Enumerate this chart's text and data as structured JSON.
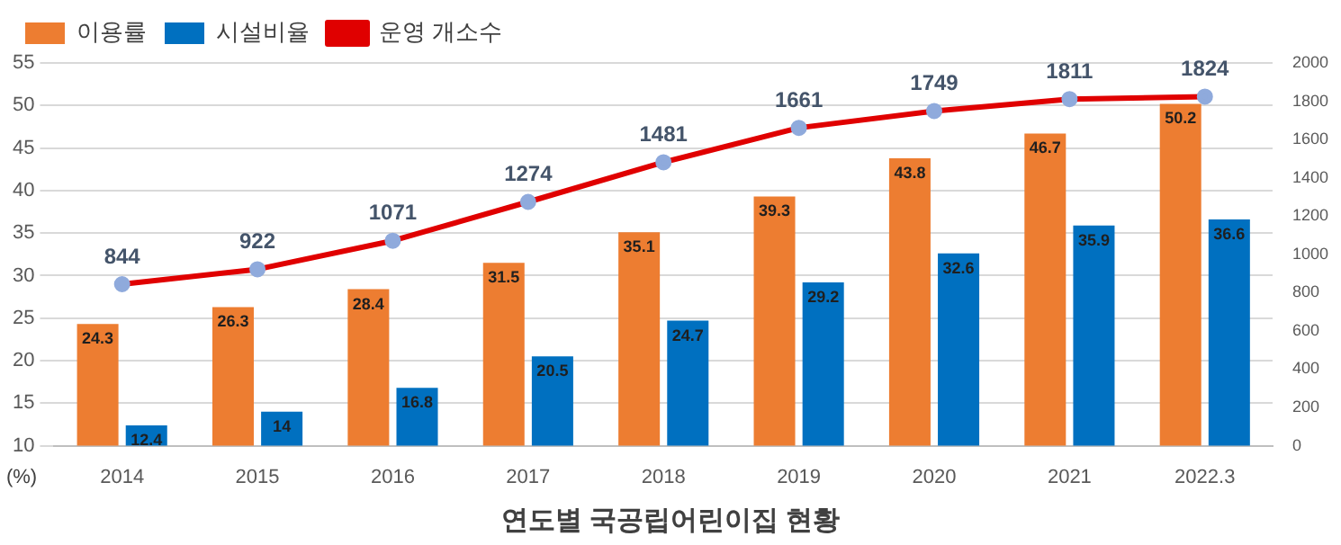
{
  "chart_data": {
    "type": "bar",
    "title": "연도별 국공립어린이집 현황",
    "ylabel": "(%)",
    "categories": [
      "2014",
      "2015",
      "2016",
      "2017",
      "2018",
      "2019",
      "2020",
      "2021",
      "2022.3"
    ],
    "series": [
      {
        "name": "이용률",
        "color": "#ed7d31",
        "values": [
          24.3,
          26.3,
          28.4,
          31.5,
          35.1,
          39.3,
          43.8,
          46.7,
          50.2
        ]
      },
      {
        "name": "시설비율",
        "color": "#0070c0",
        "values": [
          12.4,
          14,
          16.8,
          20.5,
          24.7,
          29.2,
          32.6,
          35.9,
          36.6
        ]
      },
      {
        "name": "운영 개소수",
        "type": "line",
        "axis": "y2",
        "color": "#e00000",
        "marker": "circle",
        "values": [
          844,
          922,
          1071,
          1274,
          1481,
          1661,
          1749,
          1811,
          1824
        ]
      }
    ],
    "ylim": [
      10,
      55
    ],
    "yticks": [
      10,
      15,
      20,
      25,
      30,
      35,
      40,
      45,
      50,
      55
    ],
    "y2lim": [
      0,
      2000
    ],
    "y2ticks": [
      0,
      200,
      400,
      600,
      800,
      1000,
      1200,
      1400,
      1600,
      1800,
      2000
    ],
    "grid": "y",
    "legend": "top",
    "data_labels": true
  }
}
